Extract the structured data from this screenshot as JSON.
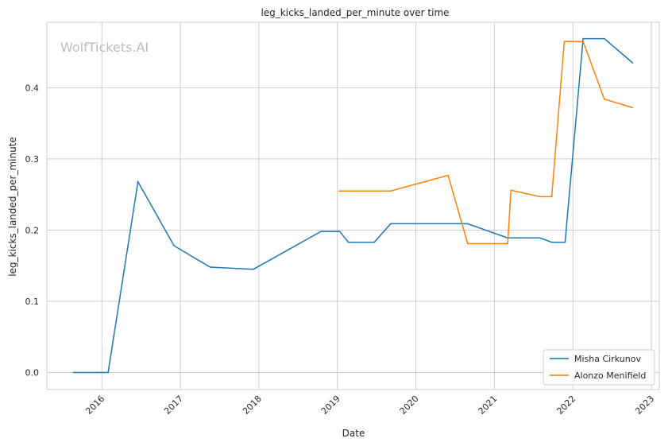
{
  "chart_data": {
    "type": "line",
    "title": "leg_kicks_landed_per_minute over time",
    "xlabel": "Date",
    "ylabel": "leg_kicks_landed_per_minute",
    "watermark": "WolfTickets.AI",
    "xlim": [
      2015.3,
      2023.1
    ],
    "ylim": [
      -0.024,
      0.492
    ],
    "xticks": [
      2016,
      2017,
      2018,
      2019,
      2020,
      2021,
      2022,
      2023
    ],
    "xtick_labels": [
      "2016",
      "2017",
      "2018",
      "2019",
      "2020",
      "2021",
      "2022",
      "2023"
    ],
    "yticks": [
      0,
      0.1,
      0.2,
      0.3,
      0.4
    ],
    "ytick_labels": [
      "0.0",
      "0.1",
      "0.2",
      "0.3",
      "0.4"
    ],
    "grid": true,
    "legend_position": "bottom-right",
    "series": [
      {
        "name": "Misha Cirkunov",
        "color": "#1f77b4",
        "x": [
          2015.64,
          2016.08,
          2016.46,
          2016.92,
          2017.38,
          2017.93,
          2018.79,
          2019.03,
          2019.14,
          2019.47,
          2019.68,
          2020.66,
          2021.17,
          2021.58,
          2021.73,
          2021.9,
          2022.13,
          2022.4,
          2022.76
        ],
        "y": [
          0,
          0,
          0.268,
          0.178,
          0.148,
          0.145,
          0.198,
          0.198,
          0.183,
          0.183,
          0.209,
          0.209,
          0.189,
          0.189,
          0.183,
          0.183,
          0.469,
          0.469,
          0.435
        ]
      },
      {
        "name": "Alonzo Menifield",
        "color": "#ff7f0e",
        "x": [
          2019.02,
          2019.68,
          2020.41,
          2020.66,
          2021.17,
          2021.21,
          2021.58,
          2021.73,
          2021.89,
          2022.13,
          2022.4,
          2022.76
        ],
        "y": [
          0.255,
          0.255,
          0.277,
          0.181,
          0.181,
          0.256,
          0.247,
          0.247,
          0.465,
          0.465,
          0.384,
          0.372
        ]
      }
    ]
  }
}
